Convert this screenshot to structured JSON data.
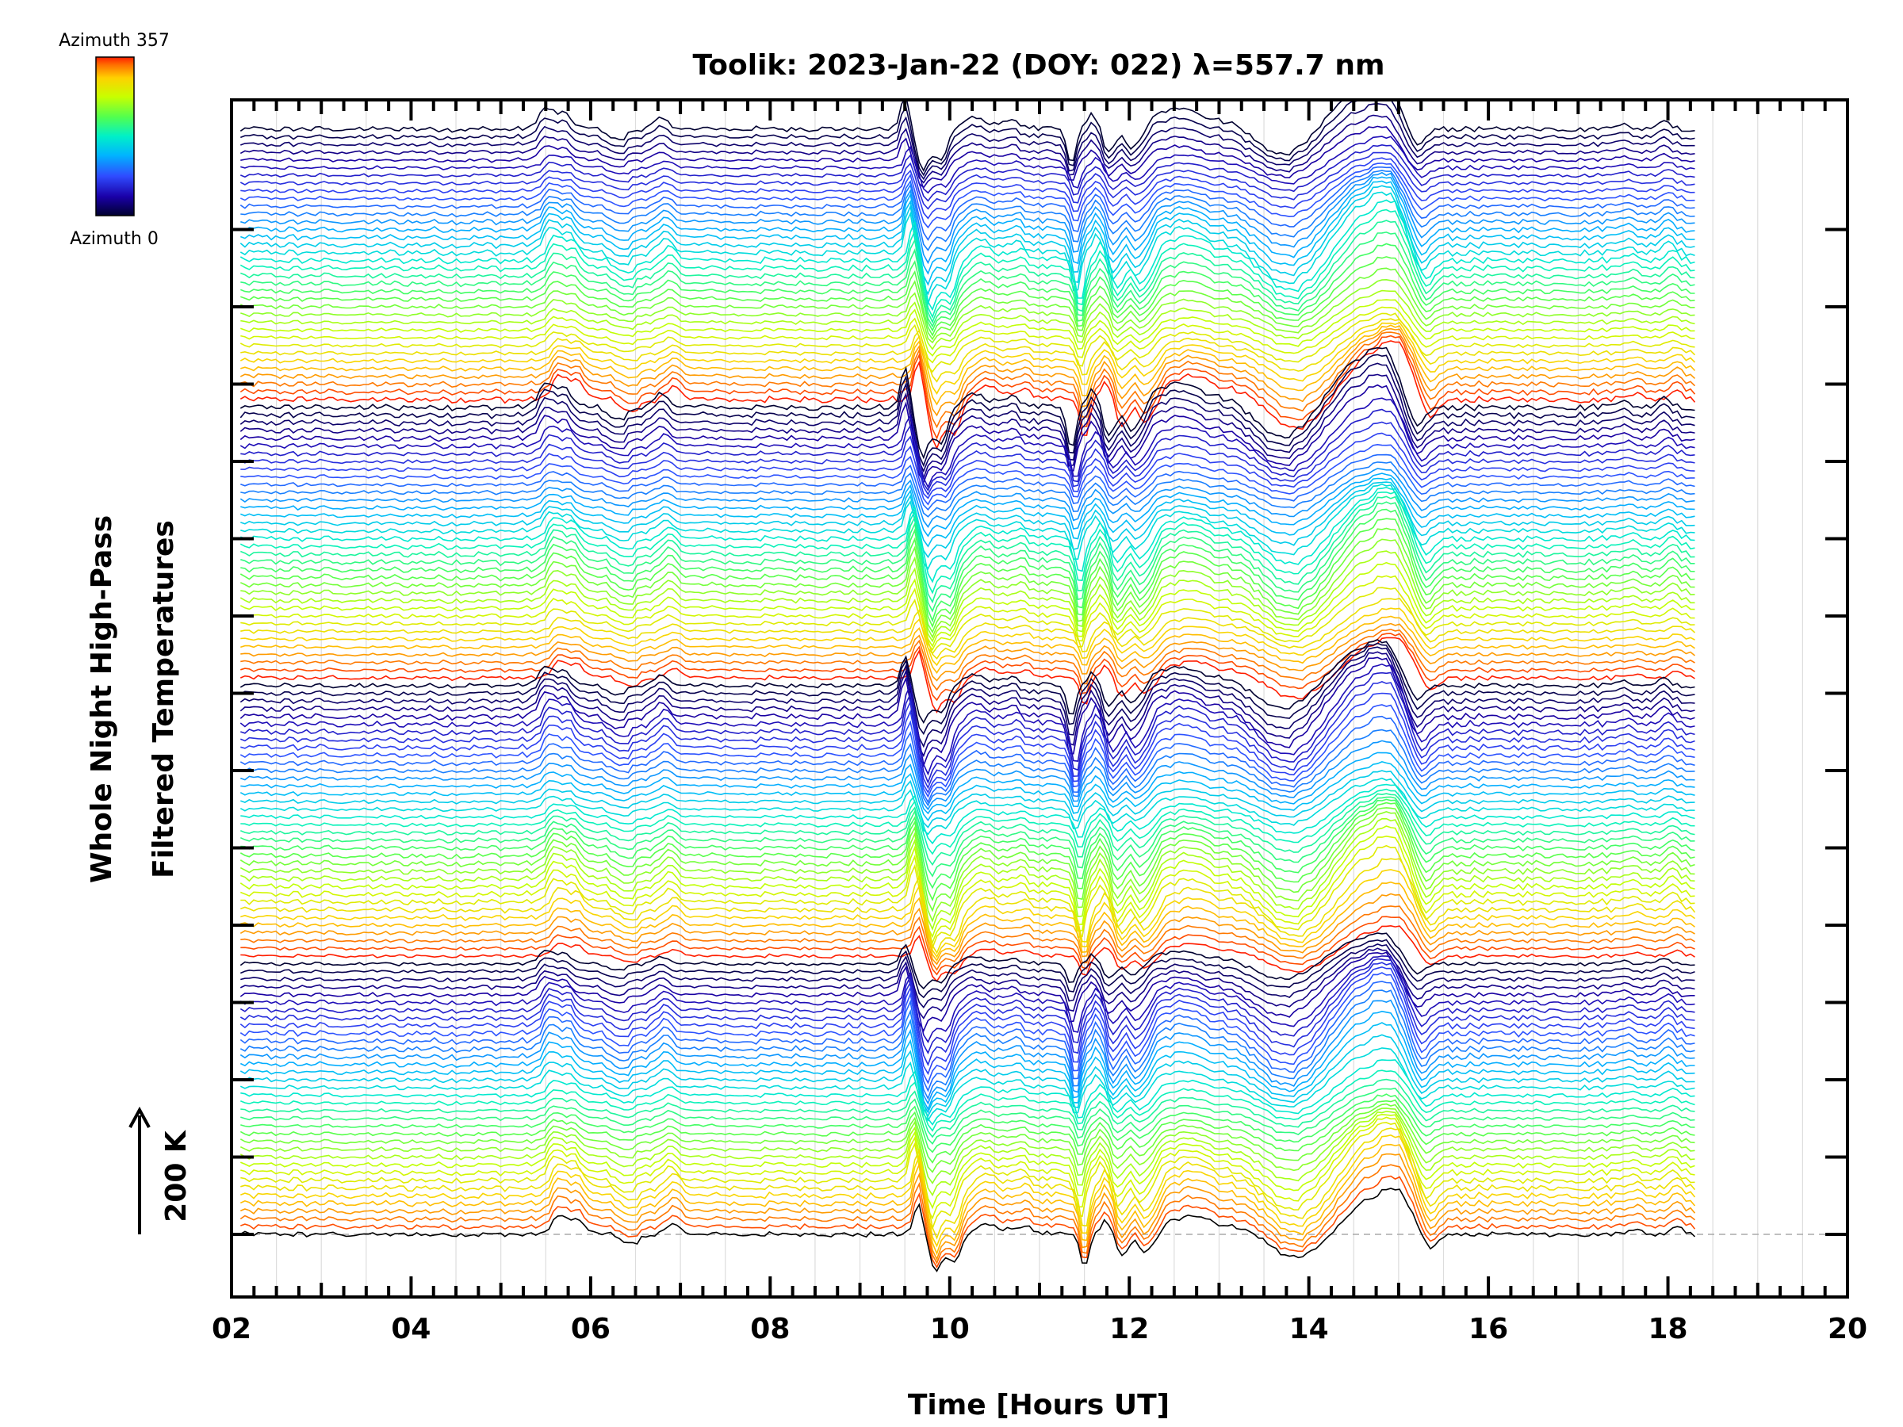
{
  "chart_data": {
    "type": "line",
    "title": "Toolik: 2023-Jan-22 (DOY: 022) λ=557.7 nm",
    "xlabel": "Time [Hours UT]",
    "ylabel_line1": "Whole Night High-Pass",
    "ylabel_line2": "Filtered Temperatures",
    "xlim": [
      2,
      20
    ],
    "xticks": [
      2,
      4,
      6,
      8,
      10,
      12,
      14,
      16,
      18,
      20
    ],
    "xtick_labels": [
      "02",
      "04",
      "06",
      "08",
      "10",
      "12",
      "14",
      "16",
      "18",
      "20"
    ],
    "data_x_range": [
      2.1,
      18.3
    ],
    "scale_bar_label": "200 K",
    "colorbar": {
      "top_label": "Azimuth 357",
      "bottom_label": "Azimuth 0",
      "colors": [
        "#000030",
        "#1a00a8",
        "#2f4cff",
        "#00b4ff",
        "#00f0c8",
        "#50ff50",
        "#c8ff00",
        "#ffd000",
        "#ff7000",
        "#ff1e00"
      ]
    },
    "series_count": 144,
    "grid": true
  }
}
